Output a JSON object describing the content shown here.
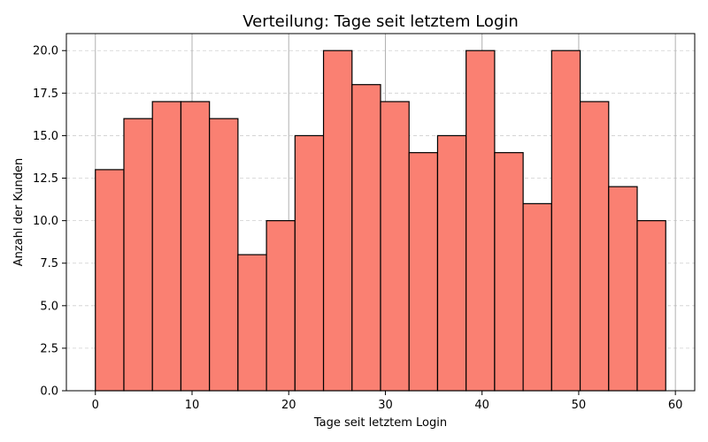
{
  "chart_data": {
    "type": "bar",
    "title": "Verteilung: Tage seit letztem Login",
    "xlabel": "Tage seit letztem Login",
    "ylabel": "Anzahl der Kunden",
    "bin_edges": [
      0,
      2.95,
      5.9,
      8.85,
      11.8,
      14.75,
      17.7,
      20.65,
      23.6,
      26.55,
      29.5,
      32.45,
      35.4,
      38.35,
      41.3,
      44.25,
      47.2,
      50.15,
      53.1,
      56.05,
      59
    ],
    "values": [
      13,
      16,
      17,
      17,
      16,
      8,
      10,
      15,
      20,
      18,
      17,
      14,
      15,
      20,
      14,
      11,
      20,
      17,
      12,
      10
    ],
    "xlim": [
      -3,
      62
    ],
    "ylim": [
      0,
      21
    ],
    "x_ticks": [
      0,
      10,
      20,
      30,
      40,
      50,
      60
    ],
    "x_tick_labels": [
      "0",
      "10",
      "20",
      "30",
      "40",
      "50",
      "60"
    ],
    "y_ticks": [
      0,
      2.5,
      5,
      7.5,
      10,
      12.5,
      15,
      17.5,
      20
    ],
    "y_tick_labels": [
      "0.0",
      "2.5",
      "5.0",
      "7.5",
      "10.0",
      "12.5",
      "15.0",
      "17.5",
      "20.0"
    ],
    "grid": {
      "x": "solid",
      "y": "dashed"
    },
    "colors": {
      "bar_fill": "#FA8072",
      "bar_edge": "#000000",
      "grid": "#b0b0b0"
    }
  }
}
